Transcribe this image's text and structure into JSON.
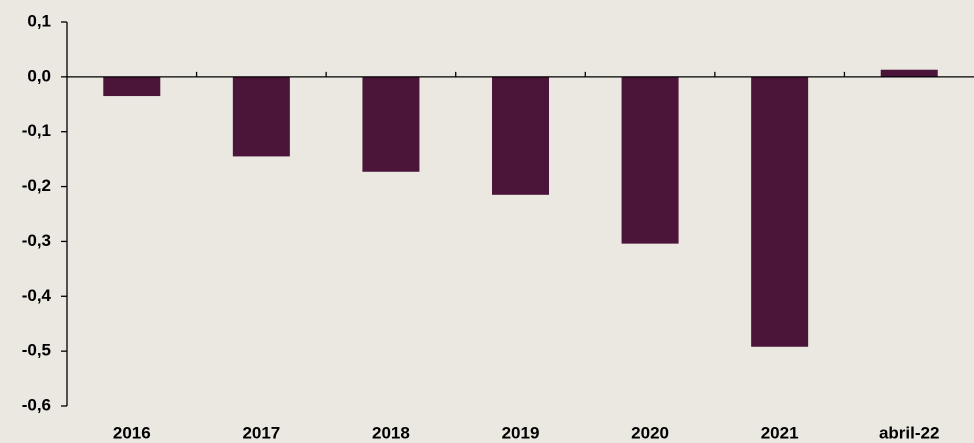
{
  "chart_data": {
    "type": "bar",
    "categories": [
      "2016",
      "2017",
      "2018",
      "2019",
      "2020",
      "2021",
      "abril-22"
    ],
    "values": [
      -0.035,
      -0.145,
      -0.173,
      -0.215,
      -0.304,
      -0.492,
      0.013
    ],
    "color": "#4a1538",
    "ylim": [
      -0.6,
      0.1
    ],
    "yticks": [
      {
        "value": -0.6,
        "label": "-0,6"
      },
      {
        "value": -0.5,
        "label": "-0,5"
      },
      {
        "value": -0.4,
        "label": "-0,4"
      },
      {
        "value": -0.3,
        "label": "-0,3"
      },
      {
        "value": -0.2,
        "label": "-0,2"
      },
      {
        "value": -0.1,
        "label": "-0,1"
      },
      {
        "value": 0,
        "label": "0,0"
      },
      {
        "value": 0.1,
        "label": "0,1"
      }
    ],
    "grid": false
  }
}
